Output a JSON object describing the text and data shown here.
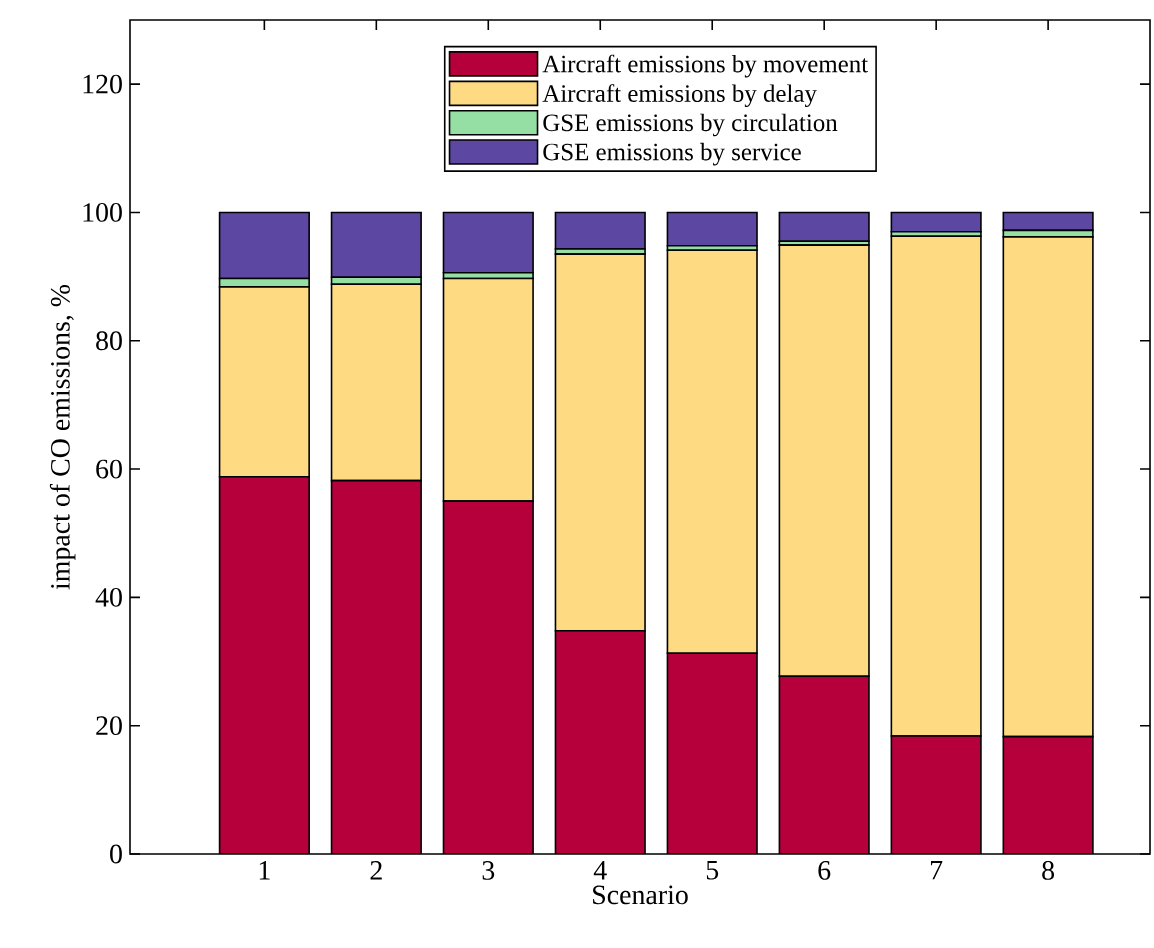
{
  "chart_data": {
    "type": "bar",
    "stacked": true,
    "xlabel": "Scenario",
    "ylabel": "impact of CO emissions, %",
    "categories": [
      "1",
      "2",
      "3",
      "4",
      "5",
      "6",
      "7",
      "8"
    ],
    "series": [
      {
        "name": "Aircraft emissions by movement",
        "color": "#b5003c",
        "values": [
          58.8,
          58.2,
          55.0,
          34.8,
          31.3,
          27.7,
          18.4,
          18.3
        ]
      },
      {
        "name": "Aircraft emissions by delay",
        "color": "#fedb82",
        "values": [
          29.6,
          30.6,
          34.7,
          58.7,
          62.8,
          67.2,
          77.9,
          77.9
        ]
      },
      {
        "name": "GSE emissions by circulation",
        "color": "#96dfa4",
        "values": [
          1.3,
          1.1,
          0.9,
          0.8,
          0.7,
          0.6,
          0.7,
          1.0
        ]
      },
      {
        "name": "GSE emissions by service",
        "color": "#5c48a2",
        "values": [
          10.3,
          10.1,
          9.4,
          5.7,
          5.2,
          4.5,
          3.0,
          2.8
        ]
      }
    ],
    "ylim": [
      0,
      130
    ],
    "yticks": [
      0,
      20,
      40,
      60,
      80,
      100,
      120
    ],
    "legend": "top"
  }
}
